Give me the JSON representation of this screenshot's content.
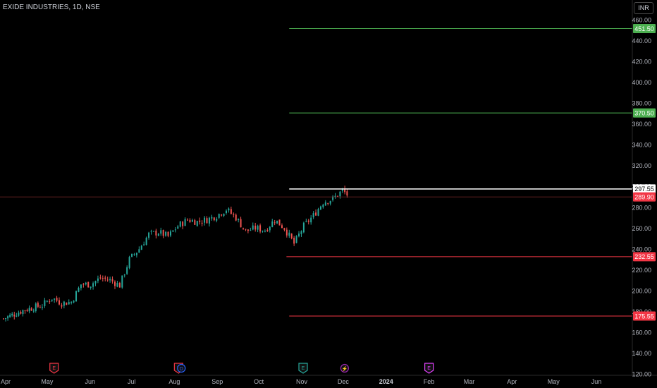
{
  "header": {
    "symbol_title": "EXIDE INDUSTRIES, 1D, NSE",
    "currency_label": "INR"
  },
  "colors": {
    "up": "#26a69a",
    "down": "#ef5350",
    "green_level": "#4caf50",
    "red_level": "#f23645",
    "white_level": "#ffffff",
    "background": "#000000"
  },
  "chart_data": {
    "type": "candlestick",
    "title": "EXIDE INDUSTRIES, 1D, NSE",
    "y_axis": {
      "ticks": [
        120,
        140,
        160,
        180,
        200,
        220,
        240,
        260,
        280,
        300,
        320,
        340,
        360,
        380,
        400,
        420,
        440,
        460
      ],
      "range": [
        120,
        460
      ]
    },
    "x_axis": {
      "labels": [
        "Apr",
        "May",
        "Jun",
        "Jul",
        "Aug",
        "Sep",
        "Oct",
        "Nov",
        "Dec",
        "2024",
        "Feb",
        "Mar",
        "Apr",
        "May",
        "Jun"
      ]
    },
    "last_price": 289.9,
    "levels": [
      {
        "label": "451.50",
        "value": 451.5,
        "color": "green"
      },
      {
        "label": "370.50",
        "value": 370.5,
        "color": "green"
      },
      {
        "label": "297.55",
        "value": 297.55,
        "color": "white"
      },
      {
        "label": "289.90",
        "value": 289.9,
        "color": "last"
      },
      {
        "label": "232.55",
        "value": 232.55,
        "color": "red"
      },
      {
        "label": "175.55",
        "value": 175.55,
        "color": "red"
      }
    ],
    "events": [
      {
        "date": "2023-05-05",
        "symbol": "E"
      },
      {
        "date": "2023-08-03",
        "symbol": "E"
      },
      {
        "date": "2023-08-05",
        "symbol": "D"
      },
      {
        "date": "2023-11-01",
        "symbol": "E"
      },
      {
        "date": "2023-12-01",
        "symbol": "S"
      },
      {
        "date": "2024-01-31",
        "symbol": "E"
      }
    ],
    "closes": [
      {
        "date": "2023-04-01",
        "close": 173
      },
      {
        "date": "2023-04-15",
        "close": 181
      },
      {
        "date": "2023-04-29",
        "close": 186
      },
      {
        "date": "2023-05-06",
        "close": 193
      },
      {
        "date": "2023-05-13",
        "close": 188
      },
      {
        "date": "2023-05-20",
        "close": 189
      },
      {
        "date": "2023-05-27",
        "close": 206
      },
      {
        "date": "2023-06-03",
        "close": 206
      },
      {
        "date": "2023-06-10",
        "close": 212
      },
      {
        "date": "2023-06-17",
        "close": 210
      },
      {
        "date": "2023-06-24",
        "close": 205
      },
      {
        "date": "2023-07-01",
        "close": 230
      },
      {
        "date": "2023-07-08",
        "close": 240
      },
      {
        "date": "2023-07-15",
        "close": 254
      },
      {
        "date": "2023-07-22",
        "close": 256
      },
      {
        "date": "2023-07-29",
        "close": 252
      },
      {
        "date": "2023-08-05",
        "close": 262
      },
      {
        "date": "2023-08-12",
        "close": 268
      },
      {
        "date": "2023-08-19",
        "close": 266
      },
      {
        "date": "2023-08-26",
        "close": 268
      },
      {
        "date": "2023-09-02",
        "close": 272
      },
      {
        "date": "2023-09-09",
        "close": 278
      },
      {
        "date": "2023-09-16",
        "close": 270
      },
      {
        "date": "2023-09-23",
        "close": 257
      },
      {
        "date": "2023-09-30",
        "close": 260
      },
      {
        "date": "2023-10-07",
        "close": 258
      },
      {
        "date": "2023-10-14",
        "close": 268
      },
      {
        "date": "2023-10-21",
        "close": 260
      },
      {
        "date": "2023-10-28",
        "close": 245
      },
      {
        "date": "2023-11-04",
        "close": 262
      },
      {
        "date": "2023-11-11",
        "close": 272
      },
      {
        "date": "2023-11-18",
        "close": 285
      },
      {
        "date": "2023-11-25",
        "close": 288
      },
      {
        "date": "2023-12-02",
        "close": 296
      },
      {
        "date": "2023-12-07",
        "close": 290
      }
    ]
  }
}
